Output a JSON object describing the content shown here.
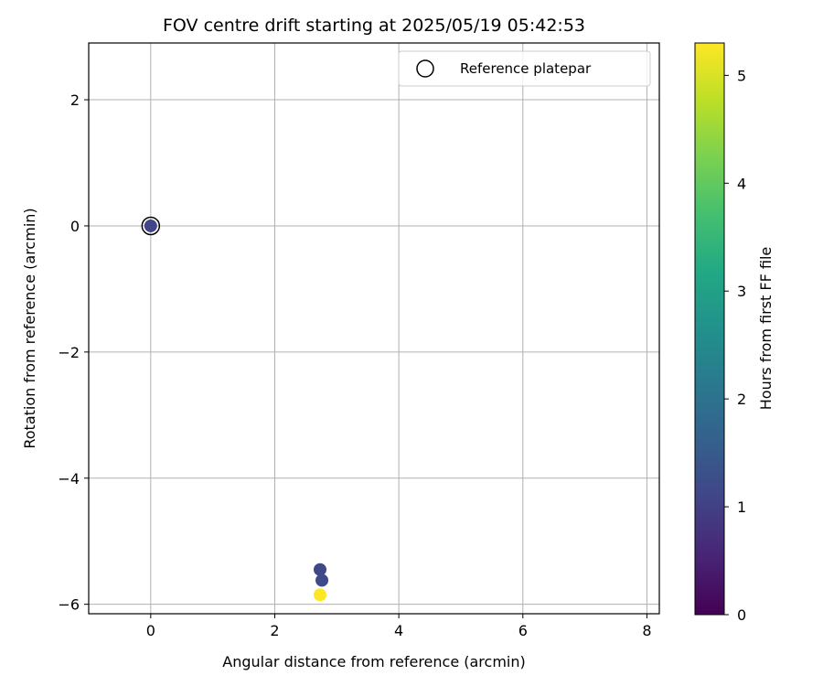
{
  "chart_data": {
    "type": "scatter",
    "title": "FOV centre drift starting at 2025/05/19 05:42:53",
    "xlabel": "Angular distance from reference (arcmin)",
    "ylabel": "Rotation from reference (arcmin)",
    "xlim": [
      -1.0,
      8.2
    ],
    "ylim": [
      -6.15,
      2.9
    ],
    "xticks": [
      0,
      2,
      4,
      6,
      8
    ],
    "yticks": [
      -6,
      -4,
      -2,
      0,
      2
    ],
    "x_tick_labels": [
      "0",
      "2",
      "4",
      "6",
      "8"
    ],
    "y_tick_labels": [
      "−6",
      "−4",
      "−2",
      "0",
      "2"
    ],
    "grid": true,
    "points": [
      {
        "x": 0.0,
        "y": 0.0,
        "hours": 1.1
      },
      {
        "x": 2.73,
        "y": -5.45,
        "hours": 1.15
      },
      {
        "x": 2.76,
        "y": -5.62,
        "hours": 1.2
      },
      {
        "x": 2.73,
        "y": -5.85,
        "hours": 5.3
      }
    ],
    "reference": {
      "x": 0.0,
      "y": 0.0,
      "label": "Reference platepar"
    },
    "legend": {
      "location": "top-right",
      "entries": [
        "Reference platepar"
      ]
    },
    "colorbar": {
      "label": "Hours from first FF file",
      "colormap": "viridis",
      "range": [
        0,
        5.3
      ],
      "ticks": [
        0,
        1,
        2,
        3,
        4,
        5
      ],
      "tick_labels": [
        "0",
        "1",
        "2",
        "3",
        "4",
        "5"
      ]
    }
  }
}
